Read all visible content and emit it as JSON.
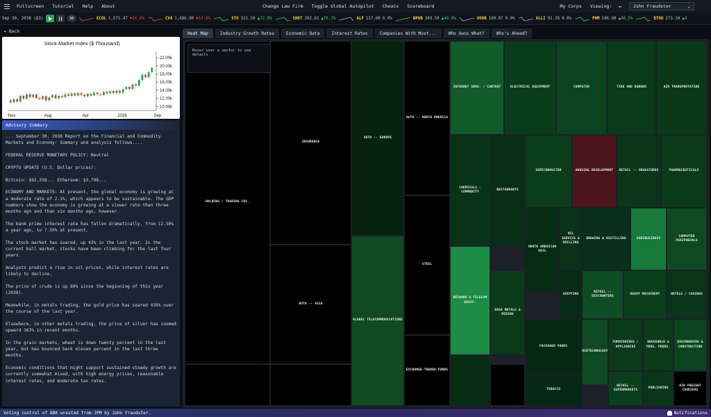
{
  "menu": {
    "items": [
      "Fullscreen",
      "Tutorial",
      "Help",
      "About"
    ],
    "center_items": [
      "Change Law Firm",
      "Toggle Global Autopilot",
      "Cheats",
      "Scoreboard"
    ],
    "my_corps": "My Corps",
    "viewing_label": "Viewing:",
    "back_arrow": "←",
    "viewing_value": "John Fraudster"
  },
  "ticker": {
    "date": "Sep 30, 2038 (Q3)",
    "speed": "30",
    "items": [
      {
        "sym": "ECOL",
        "price": "1,571.47",
        "chg": "▼16.6%",
        "dir": "dn"
      },
      {
        "sym": "CVA",
        "price": "1,686.00",
        "chg": "▼14.6%",
        "dir": "dn"
      },
      {
        "sym": "STO",
        "price": "322.50",
        "chg": "▲72.9%",
        "dir": "up"
      },
      {
        "sym": "SHOT",
        "price": "202.61",
        "chg": "▲75.3%",
        "dir": "up"
      },
      {
        "sym": "ALF",
        "price": "117.60",
        "chg": "0.0%",
        "dir": "flat"
      },
      {
        "sym": "NPUB",
        "price": "303.50",
        "chg": "▲49.9%",
        "dir": "up"
      },
      {
        "sym": "VOOR",
        "price": "100.07",
        "chg": "0.0%",
        "dir": "flat"
      },
      {
        "sym": "ALLI",
        "price": "92.36",
        "chg": "0.0%",
        "dir": "flat"
      },
      {
        "sym": "PHM",
        "price": "246.60",
        "chg": "▲46.5%",
        "dir": "up"
      },
      {
        "sym": "DTOU",
        "price": "273.34",
        "chg": "▲4",
        "dir": "up"
      }
    ]
  },
  "left": {
    "back": "◂ Back",
    "advisory_title": "Advisory Summary",
    "paragraphs": [
      "... September 30, 2038 Report on the Financial and Commodity Markets and Economy: Summary and analysis follows....",
      "FEDERAL RESERVE MONETARY POLICY: Neutral",
      "CRYPTO UPDATE (U.S. Dollar prices):",
      "Bitcoin: $92,338... Ethereum: $3,798...",
      "ECONOMY AND MARKETS: At present, the global economy is growing at a moderate rate of 2.1%, which appears to be sustainable. The GDP numbers show the economy is growing at a slower rate than three months ago and than six months ago, however.",
      "The bank prime interest rate has fallen dramatically, from 12.50% a year ago, to 7.50% at present.",
      "The stock market has soared, up 43% in the last year. In the current bull market, stocks have been climbing for the last four years.",
      "Analysts predict a rise in oil prices, while interest rates are likely to decline.",
      "The price of crude is up 89% since the beginning of this year (2038).",
      "Meanwhile, in metals trading, the gold price has soared 435% over the course of the last year.",
      "Elsewhere, in other metals trading, the price of silver has zoomed upward 163% in recent months.",
      "In the grain markets, wheat is down twenty percent in the last year, but has bounced back eleven percent in the last three months.",
      "Economic conditions that might support sustained steady growth are currently somewhat mixed, with high energy prices, reasonable interest rates, and moderate tax rates."
    ]
  },
  "chart_data": {
    "type": "candlestick",
    "title": "Stock Market Index ($ Thousand)",
    "x_tick_labels": [
      "Nov",
      "Aug",
      "Apr",
      "2038",
      "Sep"
    ],
    "y_tick_labels": [
      "22.00k",
      "20.00k",
      "18.00k",
      "16.00k",
      "14.00k",
      "12.00k",
      "10.00k"
    ],
    "ylim": [
      9000,
      22500
    ],
    "candles": [
      [
        11500,
        11000
      ],
      [
        11000,
        11800
      ],
      [
        11800,
        11200
      ],
      [
        11200,
        12600
      ],
      [
        12600,
        11900
      ],
      [
        11900,
        13000
      ],
      [
        13000,
        12300
      ],
      [
        12300,
        12900
      ],
      [
        12900,
        12100
      ],
      [
        12100,
        11800
      ],
      [
        11800,
        12500
      ],
      [
        12500,
        11500
      ],
      [
        11500,
        12200
      ],
      [
        12200,
        12800
      ],
      [
        12800,
        12000
      ],
      [
        12000,
        12600
      ],
      [
        12600,
        12300
      ],
      [
        12300,
        13000
      ],
      [
        13000,
        12600
      ],
      [
        12600,
        13200
      ],
      [
        13200,
        12700
      ],
      [
        12700,
        13300
      ],
      [
        13300,
        12900
      ],
      [
        12900,
        12500
      ],
      [
        12500,
        13100
      ],
      [
        13100,
        12700
      ],
      [
        12700,
        13400
      ],
      [
        13400,
        13000
      ],
      [
        13000,
        12800
      ],
      [
        12800,
        13600
      ],
      [
        13600,
        13200
      ],
      [
        13200,
        13800
      ],
      [
        13800,
        13300
      ],
      [
        13300,
        13900
      ],
      [
        13900,
        13400
      ],
      [
        13400,
        14200
      ],
      [
        14200,
        14800
      ],
      [
        14800,
        14300
      ],
      [
        14300,
        15400
      ],
      [
        15400,
        15100
      ],
      [
        15100,
        16500
      ],
      [
        16500,
        17800
      ],
      [
        17800,
        17200
      ],
      [
        17200,
        18400
      ],
      [
        18400,
        19500
      ]
    ]
  },
  "tabs": [
    "Heat Map",
    "Industry Growth Rates",
    "Economic Data",
    "Interest Rates",
    "Companies With Most...",
    "Who Owns What?",
    "Who's Ahead?"
  ],
  "heatmap": {
    "hover_hint": "Hover over a sector to see details",
    "cells": [
      {
        "label": "HOLDING / TRADING COS.",
        "c": "#000000"
      },
      {
        "label": "",
        "c": "#000000"
      },
      {
        "label": "INSURANCE",
        "c": "#000000"
      },
      {
        "label": "AUTO -- ASIA",
        "c": "#000000"
      },
      {
        "label": "",
        "c": "#000000"
      },
      {
        "label": "AUTO -- EUROPE",
        "c": "#06230f"
      },
      {
        "label": "GLOBAL TELECOMMUNICATIONS",
        "c": "#0f4a21"
      },
      {
        "label": "AUTO -- NORTH AMERICA",
        "c": "#000000"
      },
      {
        "label": "STEEL",
        "c": "#000000"
      },
      {
        "label": "EXCHANGE-TRADED FUNDS",
        "c": "#000000"
      },
      {
        "label": "INTERNET SERV. / CONTENT",
        "c": "#115a2a"
      },
      {
        "label": "ELECTRICAL EQUIPMENT",
        "c": "#0a3c1b"
      },
      {
        "label": "COMPUTER",
        "c": "#0c4220"
      },
      {
        "label": "TIRE AND RUBBER",
        "c": "#0a3a1a"
      },
      {
        "label": "AIR TRANSPORTATION",
        "c": "#0a391a"
      },
      {
        "label": "CHEMICALS - COMMODITY",
        "c": "#093318"
      },
      {
        "label": "RESTAURANTS",
        "c": "#082e15"
      },
      {
        "label": "SEMICONDUCTOR",
        "c": "#0b3c1c"
      },
      {
        "label": "HOUSING DEVELOPMENT",
        "c": "#4a141a"
      },
      {
        "label": "RETAIL -- DRUGSTORES",
        "c": "#0a3518"
      },
      {
        "label": "PHARMACEUTICALS",
        "c": "#0b3a1b"
      },
      {
        "label": "NORTH AMERICAN RAIL",
        "c": "#072c13"
      },
      {
        "label": "OIL SERVICE & DRILLING",
        "c": "#093217"
      },
      {
        "label": "BREWING & DISTILLING",
        "c": "#08301a"
      },
      {
        "label": "AGRIBUSINESS",
        "c": "#177a3a"
      },
      {
        "label": "COMPUTER PERIPHERALS",
        "c": "#0d4a22"
      },
      {
        "label": "NETWORK & TELECOM EQUIP.",
        "c": "#1d8c44"
      },
      {
        "label": "BASE METALS & MINING",
        "c": "#0a3a1a"
      },
      {
        "label": "SHIPPING",
        "c": "#072b14"
      },
      {
        "label": "RETAIL -- DISCOUNTERS",
        "c": "#0e4d24"
      },
      {
        "label": "HEAVY MACHINERY",
        "c": "#0b3e1d"
      },
      {
        "label": "HOTELS / CASINOS",
        "c": "#0a3519"
      },
      {
        "label": "PACKAGED FOODS",
        "c": "#062813"
      },
      {
        "label": "",
        "c": "#072d15"
      },
      {
        "label": "",
        "c": "#000000"
      },
      {
        "label": "BIOTECHNOLOGY",
        "c": "#0d4a22"
      },
      {
        "label": "FURNISHINGS / APPLIANCES",
        "c": "#0a391b"
      },
      {
        "label": "HOUSEHOLD & PERS. PRODS.",
        "c": "#0a3a1a"
      },
      {
        "label": "ENGINEERING & CONSTRUCTION",
        "c": "#0c4420"
      },
      {
        "label": "TOBACCO",
        "c": "#062814"
      },
      {
        "label": "RETAIL -- SUPERMARKETS",
        "c": "#0b3e1d"
      },
      {
        "label": "PUBLISHING",
        "c": "#0a3519"
      },
      {
        "label": "AIR FREIGHT COURIERS",
        "c": "#000000"
      }
    ]
  },
  "status": {
    "message": "Voting control of BBK wrested from JPM by John Fraudster.",
    "notifications": "Notifications"
  }
}
